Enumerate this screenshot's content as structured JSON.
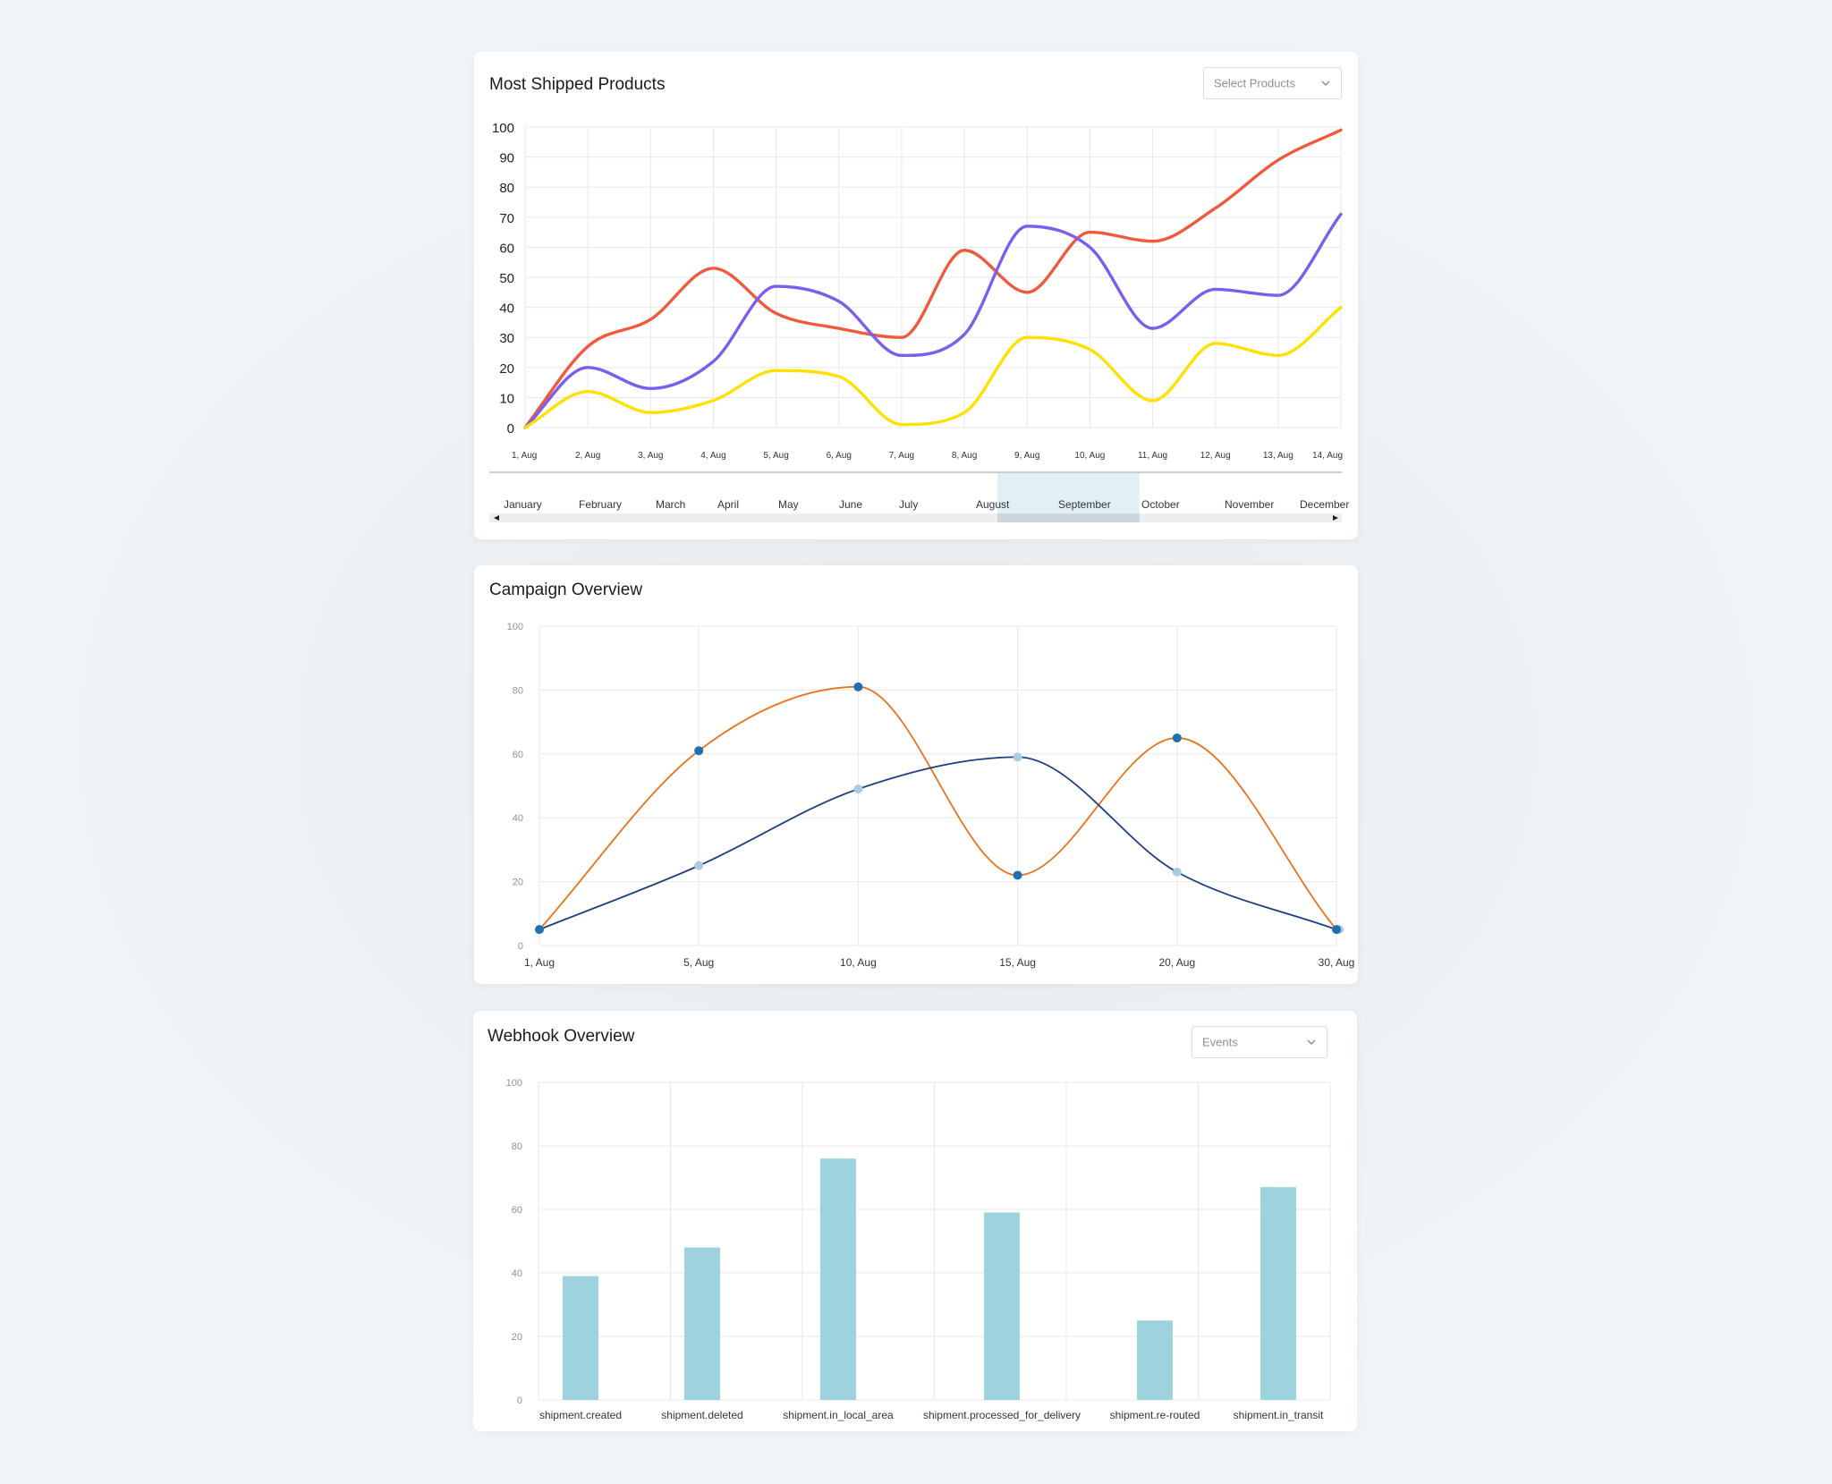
{
  "shipped": {
    "title": "Most Shipped Products",
    "select_placeholder": "Select Products",
    "chart_data": {
      "type": "line",
      "title": "Most Shipped Products",
      "x": [
        "1, Aug",
        "2, Aug",
        "3, Aug",
        "4, Aug",
        "5, Aug",
        "6, Aug",
        "7, Aug",
        "8, Aug",
        "9, Aug",
        "10, Aug",
        "11, Aug",
        "12, Aug",
        "13, Aug",
        "14, Aug"
      ],
      "ylim": [
        0,
        100
      ],
      "yticks": [
        0,
        10,
        20,
        30,
        40,
        50,
        60,
        70,
        80,
        90,
        100
      ],
      "grid": true,
      "series": [
        {
          "color": "#f05a3c",
          "values": [
            0,
            27,
            36,
            53,
            38,
            33,
            30,
            59,
            45,
            65,
            62,
            73,
            89,
            99
          ]
        },
        {
          "color": "#7b5ef0",
          "values": [
            0,
            20,
            13,
            22,
            47,
            42,
            24,
            31,
            67,
            60,
            33,
            46,
            44,
            71
          ]
        },
        {
          "color": "#ffe100",
          "values": [
            0,
            12,
            5,
            9,
            19,
            17,
            1,
            5,
            30,
            26,
            9,
            28,
            24,
            40
          ]
        }
      ]
    },
    "navigator": {
      "months": [
        "January",
        "February",
        "March",
        "April",
        "May",
        "June",
        "July",
        "August",
        "September",
        "October",
        "November",
        "December"
      ],
      "selected": [
        "August",
        "September"
      ]
    }
  },
  "campaign": {
    "title": "Campaign Overview",
    "chart_data": {
      "type": "line",
      "title": "Campaign Overview",
      "x": [
        "1, Aug",
        "5, Aug",
        "10, Aug",
        "15, Aug",
        "20, Aug",
        "30, Aug"
      ],
      "ylim": [
        0,
        100
      ],
      "yticks": [
        0,
        20,
        40,
        60,
        80,
        100
      ],
      "grid": true,
      "series": [
        {
          "color": "#e8741e",
          "marker_color": "#1f6fb2",
          "values": [
            5,
            61,
            81,
            22,
            65,
            5
          ]
        },
        {
          "color": "#1b3f80",
          "marker_color": "#a8cde0",
          "values": [
            5,
            25,
            49,
            59,
            23,
            5
          ]
        }
      ]
    }
  },
  "webhook": {
    "title": "Webhook Overview",
    "select_placeholder": "Events",
    "chart_data": {
      "type": "bar",
      "title": "Webhook Overview",
      "categories": [
        "shipment.created",
        "shipment.deleted",
        "shipment.in_local_area",
        "shipment.processed_for_delivery",
        "shipment.re-routed",
        "shipment.in_transit"
      ],
      "values": [
        39,
        48,
        76,
        59,
        25,
        67
      ],
      "ylim": [
        0,
        100
      ],
      "yticks": [
        0,
        20,
        40,
        60,
        80,
        100
      ],
      "bar_color": "#9cd3dc",
      "grid": true
    }
  }
}
